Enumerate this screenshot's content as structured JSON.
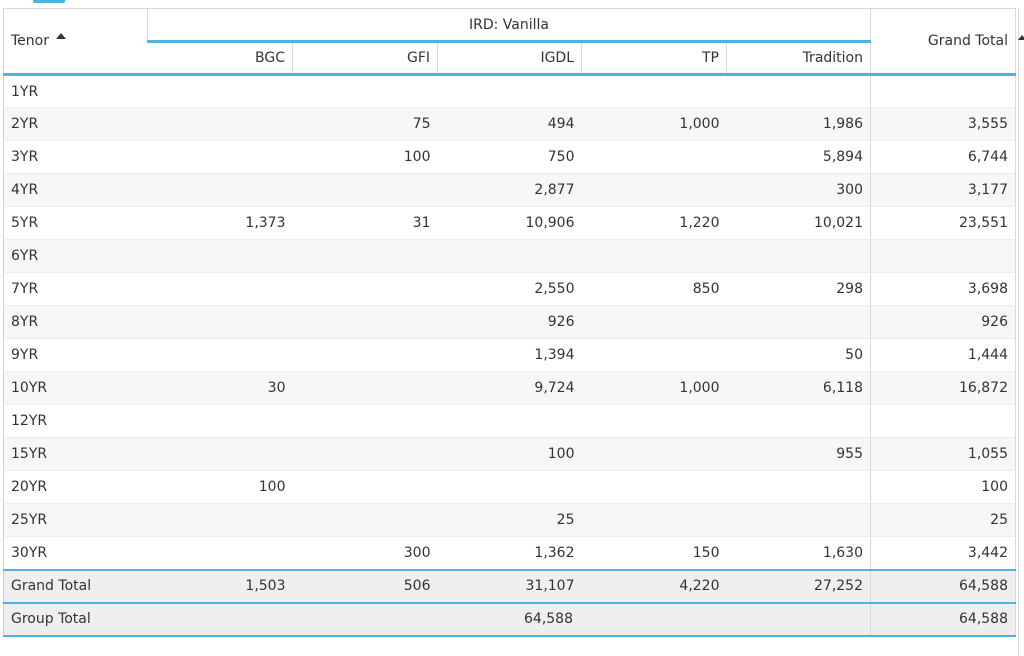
{
  "table": {
    "row_header_label": "Tenor",
    "group_label": "IRD: Vanilla",
    "grand_total_label": "Grand Total",
    "columns": [
      "BGC",
      "GFI",
      "IGDL",
      "TP",
      "Tradition"
    ],
    "rows": [
      {
        "tenor": "1YR",
        "bgc": "",
        "gfi": "",
        "igdl": "",
        "tp": "",
        "tradition": "",
        "total": ""
      },
      {
        "tenor": "2YR",
        "bgc": "",
        "gfi": "75",
        "igdl": "494",
        "tp": "1,000",
        "tradition": "1,986",
        "total": "3,555"
      },
      {
        "tenor": "3YR",
        "bgc": "",
        "gfi": "100",
        "igdl": "750",
        "tp": "",
        "tradition": "5,894",
        "total": "6,744"
      },
      {
        "tenor": "4YR",
        "bgc": "",
        "gfi": "",
        "igdl": "2,877",
        "tp": "",
        "tradition": "300",
        "total": "3,177"
      },
      {
        "tenor": "5YR",
        "bgc": "1,373",
        "gfi": "31",
        "igdl": "10,906",
        "tp": "1,220",
        "tradition": "10,021",
        "total": "23,551"
      },
      {
        "tenor": "6YR",
        "bgc": "",
        "gfi": "",
        "igdl": "",
        "tp": "",
        "tradition": "",
        "total": ""
      },
      {
        "tenor": "7YR",
        "bgc": "",
        "gfi": "",
        "igdl": "2,550",
        "tp": "850",
        "tradition": "298",
        "total": "3,698"
      },
      {
        "tenor": "8YR",
        "bgc": "",
        "gfi": "",
        "igdl": "926",
        "tp": "",
        "tradition": "",
        "total": "926"
      },
      {
        "tenor": "9YR",
        "bgc": "",
        "gfi": "",
        "igdl": "1,394",
        "tp": "",
        "tradition": "50",
        "total": "1,444"
      },
      {
        "tenor": "10YR",
        "bgc": "30",
        "gfi": "",
        "igdl": "9,724",
        "tp": "1,000",
        "tradition": "6,118",
        "total": "16,872"
      },
      {
        "tenor": "12YR",
        "bgc": "",
        "gfi": "",
        "igdl": "",
        "tp": "",
        "tradition": "",
        "total": ""
      },
      {
        "tenor": "15YR",
        "bgc": "",
        "gfi": "",
        "igdl": "100",
        "tp": "",
        "tradition": "955",
        "total": "1,055"
      },
      {
        "tenor": "20YR",
        "bgc": "100",
        "gfi": "",
        "igdl": "",
        "tp": "",
        "tradition": "",
        "total": "100"
      },
      {
        "tenor": "25YR",
        "bgc": "",
        "gfi": "",
        "igdl": "25",
        "tp": "",
        "tradition": "",
        "total": "25"
      },
      {
        "tenor": "30YR",
        "bgc": "",
        "gfi": "300",
        "igdl": "1,362",
        "tp": "150",
        "tradition": "1,630",
        "total": "3,442"
      }
    ],
    "grand_total_row": {
      "label": "Grand Total",
      "bgc": "1,503",
      "gfi": "506",
      "igdl": "31,107",
      "tp": "4,220",
      "tradition": "27,252",
      "total": "64,588"
    },
    "group_total_row": {
      "label": "Group Total",
      "group_value": "64,588",
      "total": "64,588"
    }
  },
  "colors": {
    "accent": "#4db3e0",
    "stripe": "#f7f7f7",
    "total_bg": "#efefef"
  },
  "icons": {
    "sort": "sort-ascending-icon"
  }
}
